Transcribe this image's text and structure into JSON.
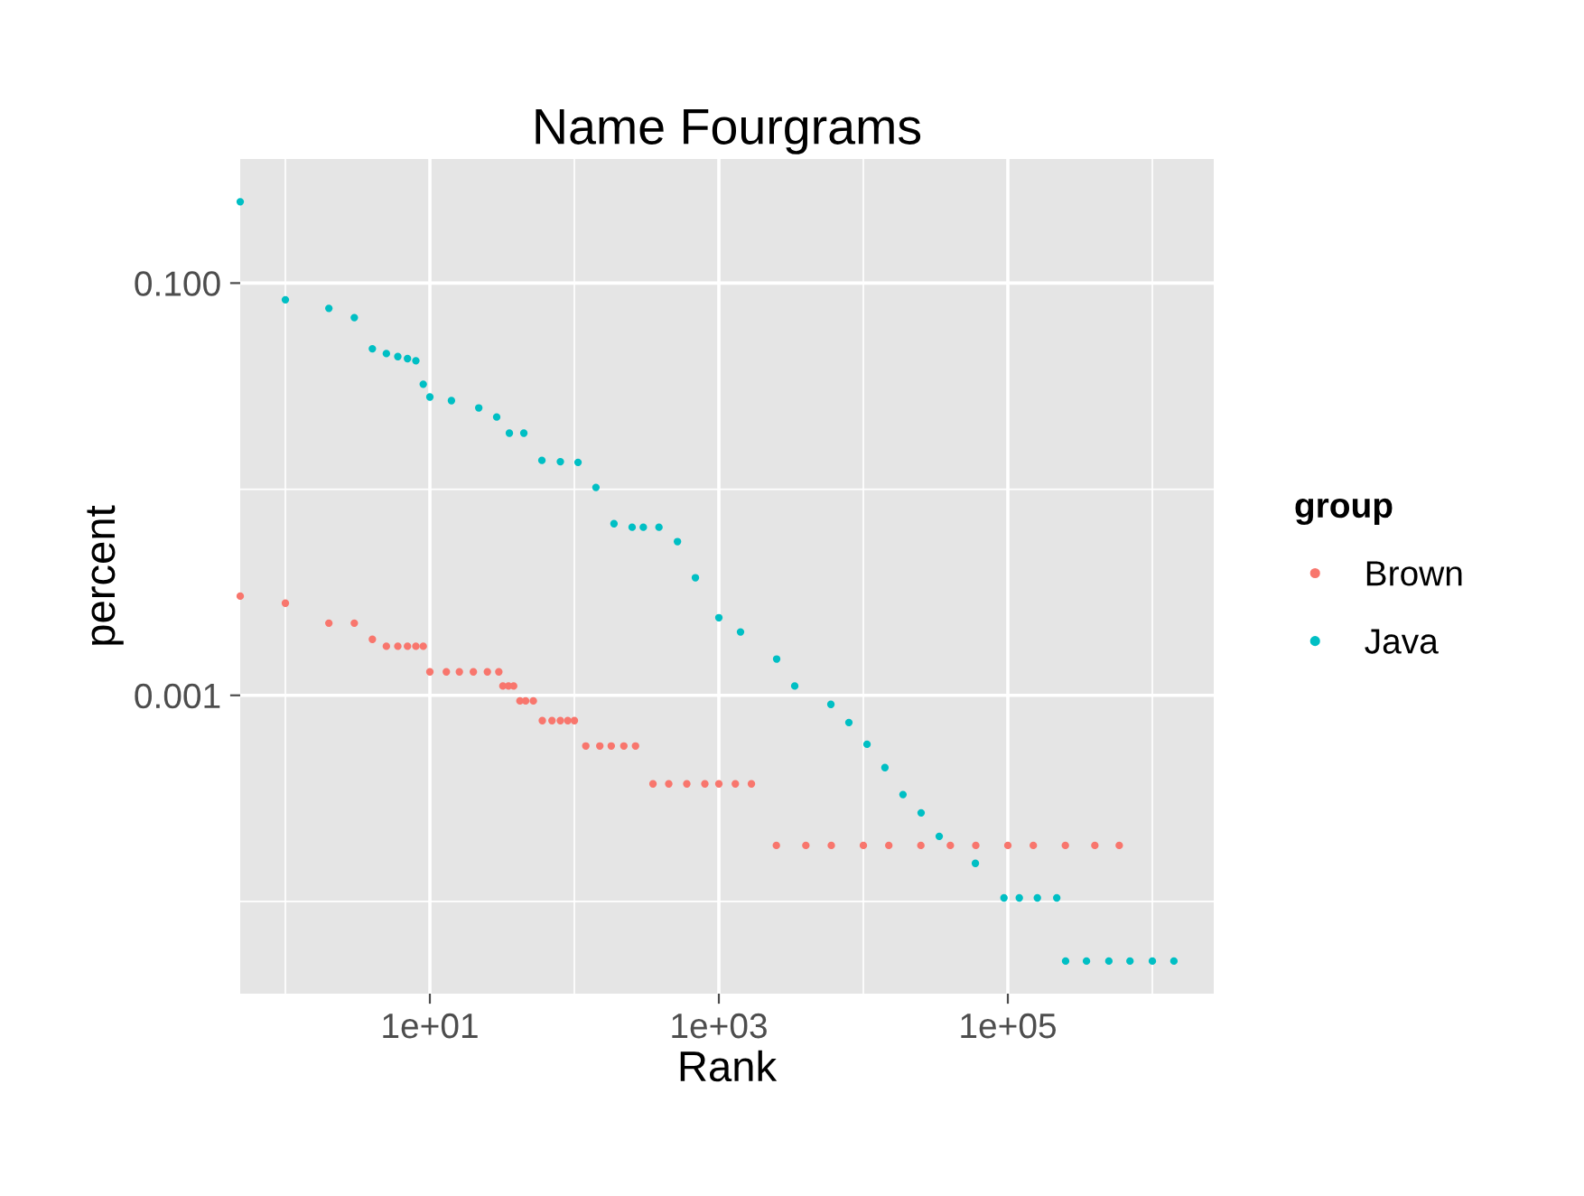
{
  "chart_data": {
    "type": "scatter",
    "title": "Name Fourgrams",
    "xlabel": "Rank",
    "ylabel": "percent",
    "legend_title": "group",
    "legend": "right",
    "grid": true,
    "log": "xy",
    "marker": "circle",
    "xlim": [
      0.487,
      2660000
    ],
    "ylim": [
      3.57e-05,
      0.4
    ],
    "xticks": [
      {
        "value": 10,
        "label": "1e+01"
      },
      {
        "value": 1000,
        "label": "1e+03"
      },
      {
        "value": 100000,
        "label": "1e+05"
      }
    ],
    "yticks": [
      {
        "value": 0.001,
        "label": "0.001"
      },
      {
        "value": 0.1,
        "label": "0.100"
      }
    ],
    "series": [
      {
        "name": "Brown",
        "color": "#f8766d",
        "x": [
          0.487,
          1,
          2,
          3,
          4,
          5,
          6,
          7,
          8,
          9,
          10,
          13,
          16,
          20,
          25,
          30,
          32,
          35,
          38,
          42,
          46,
          52,
          60,
          70,
          80,
          90,
          100,
          120,
          150,
          180,
          220,
          265,
          350,
          450,
          600,
          800,
          1000,
          1300,
          1680,
          2500,
          4000,
          6000,
          10000,
          15000,
          25000,
          40000,
          60000,
          100000,
          150000,
          250000,
          400000,
          590000
        ],
        "values": [
          0.00303,
          0.0028,
          0.00224,
          0.00224,
          0.00187,
          0.00173,
          0.00173,
          0.00173,
          0.00173,
          0.00173,
          0.0013,
          0.0013,
          0.0013,
          0.0013,
          0.0013,
          0.0013,
          0.00111,
          0.00111,
          0.00111,
          0.00094,
          0.00094,
          0.00094,
          0.000754,
          0.000754,
          0.000754,
          0.000754,
          0.000754,
          0.000568,
          0.000568,
          0.000568,
          0.000568,
          0.000568,
          0.000372,
          0.000372,
          0.000372,
          0.000372,
          0.000372,
          0.000372,
          0.000372,
          0.000187,
          0.000187,
          0.000187,
          0.000187,
          0.000187,
          0.000187,
          0.000187,
          0.000187,
          0.000187,
          0.000187,
          0.000187,
          0.000187,
          0.000187
        ]
      },
      {
        "name": "Java",
        "color": "#00bfc4",
        "x": [
          0.487,
          1,
          2,
          3,
          4,
          5,
          6,
          7,
          8,
          9,
          10,
          14.1,
          21.8,
          29,
          35.5,
          44.7,
          59.6,
          80,
          106,
          141,
          188,
          251,
          300,
          385,
          517,
          688,
          1000,
          1412,
          2512,
          3350,
          5960,
          7940,
          10600,
          14100,
          18800,
          25100,
          33500,
          59600,
          94000,
          120000,
          160000,
          218000,
          251000,
          350000,
          500000,
          700000,
          1000000,
          1410000
        ],
        "values": [
          0.248,
          0.083,
          0.0754,
          0.068,
          0.048,
          0.0455,
          0.044,
          0.043,
          0.042,
          0.0323,
          0.028,
          0.0269,
          0.0248,
          0.0224,
          0.0187,
          0.0187,
          0.0138,
          0.0136,
          0.0135,
          0.0102,
          0.0068,
          0.00654,
          0.00654,
          0.00654,
          0.00557,
          0.00372,
          0.00238,
          0.00203,
          0.0015,
          0.00111,
          0.000904,
          0.000738,
          0.000579,
          0.000446,
          0.00033,
          0.000269,
          0.000207,
          0.000153,
          0.000104,
          0.000104,
          0.000104,
          0.000104,
          5.14e-05,
          5.14e-05,
          5.14e-05,
          5.14e-05,
          5.14e-05,
          5.14e-05
        ]
      }
    ]
  }
}
